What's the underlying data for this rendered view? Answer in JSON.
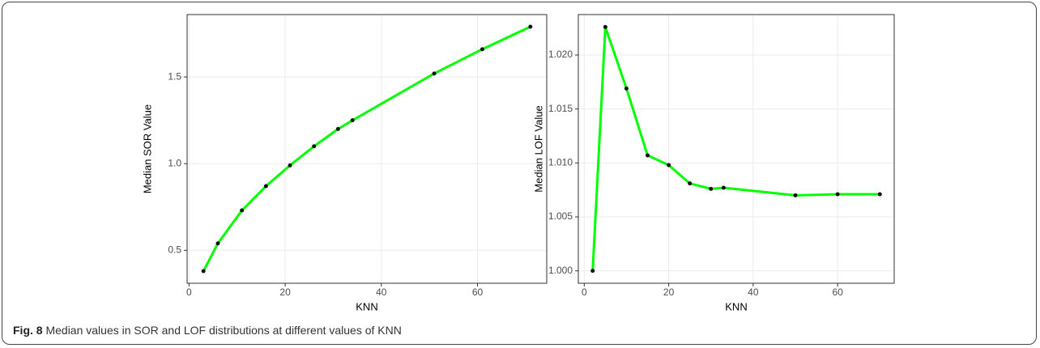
{
  "chart_data": [
    {
      "type": "line",
      "x_label": "KNN",
      "y_label": "Median SOR Value",
      "x": [
        3,
        6,
        11,
        16,
        21,
        26,
        31,
        34,
        51,
        61,
        71
      ],
      "series": [
        {
          "color": "#00ff00",
          "values": [
            0.38,
            0.54,
            0.73,
            0.87,
            0.99,
            1.1,
            1.2,
            1.25,
            1.52,
            1.66,
            1.79
          ]
        }
      ],
      "xlim": [
        -0.4,
        74.4
      ],
      "xticks": [
        0,
        20,
        40,
        60
      ],
      "ylim": [
        0.31,
        1.86
      ],
      "yticks": [
        0.5,
        {
          "value": 1,
          "label": "1.0"
        },
        1.5
      ],
      "grid": true
    },
    {
      "type": "line",
      "x_label": "KNN",
      "y_label": "Median LOF Value",
      "x": [
        2,
        5,
        10,
        15,
        20,
        25,
        30,
        33,
        50,
        60,
        70
      ],
      "series": [
        {
          "color": "#00ff00",
          "values": [
            1.0,
            1.0226,
            1.0169,
            1.0107,
            1.0098,
            1.0081,
            1.0076,
            1.0077,
            1.007,
            1.0071,
            1.0071
          ]
        }
      ],
      "xlim": [
        -1.4,
        73.4
      ],
      "xticks": [
        0,
        20,
        40,
        60
      ],
      "ylim": [
        0.99885,
        1.02375
      ],
      "yticks": [
        {
          "value": 1,
          "label": "1.000"
        },
        1.005,
        {
          "value": 1.01,
          "label": "1.010"
        },
        1.015,
        {
          "value": 1.02,
          "label": "1.020"
        }
      ],
      "grid": true
    }
  ],
  "caption": {
    "label": "Fig. 8",
    "text": "Median values in SOR and LOF distributions at different values of KNN"
  }
}
